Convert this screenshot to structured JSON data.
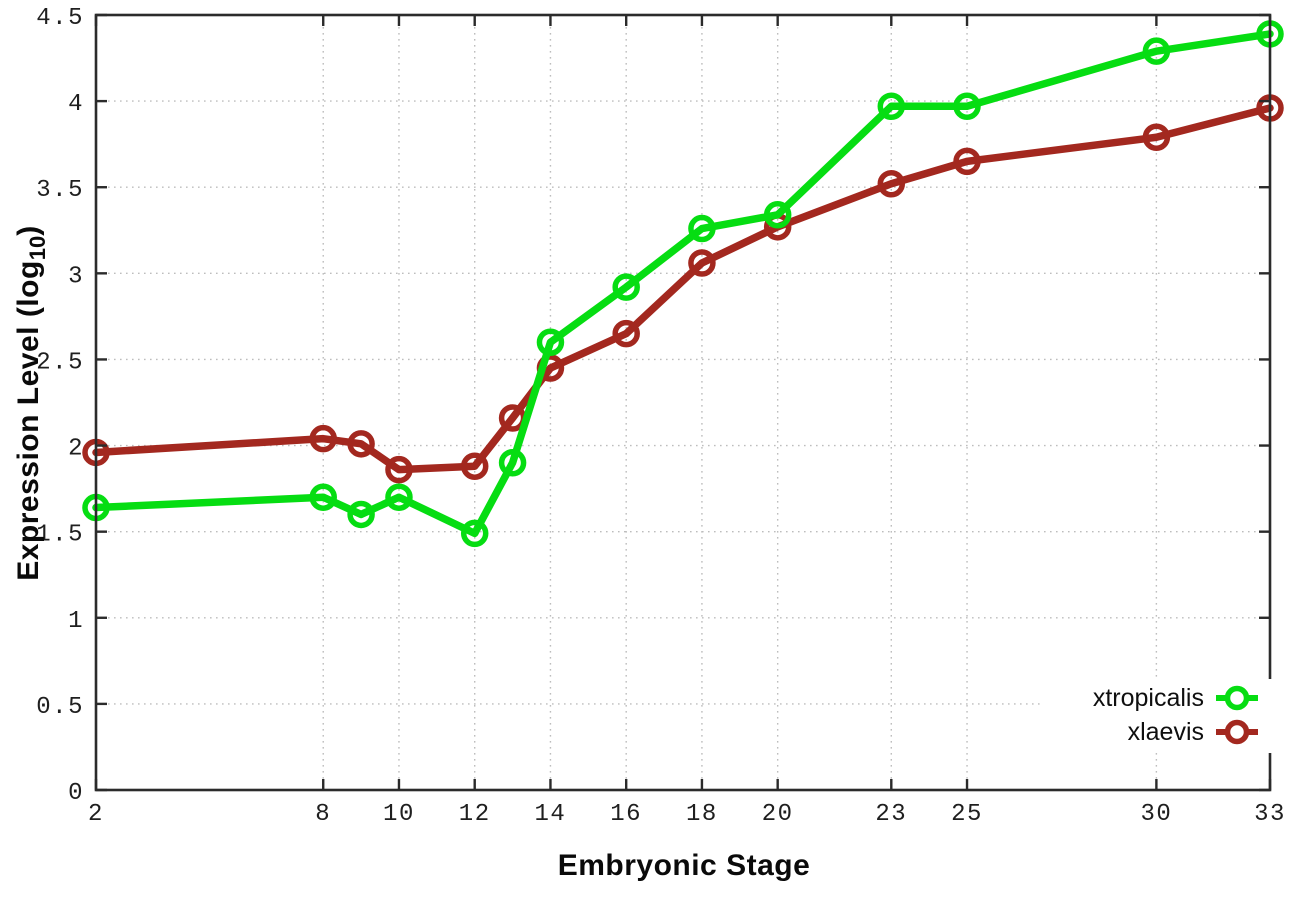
{
  "chart_data": {
    "type": "line",
    "title": "",
    "xlabel": "Embryonic Stage",
    "ylabel": "Expression Level (log10)",
    "ylabel_parts": {
      "main": "Expression Level (log",
      "sub": "10",
      "suffix": ")"
    },
    "xlim": [
      2,
      33
    ],
    "ylim": [
      0,
      4.5
    ],
    "x_ticks": [
      2,
      8,
      10,
      12,
      14,
      16,
      18,
      20,
      23,
      25,
      30,
      33
    ],
    "y_ticks": [
      0,
      0.5,
      1,
      1.5,
      2,
      2.5,
      3,
      3.5,
      4,
      4.5
    ],
    "grid": true,
    "grid_style": "dotted",
    "legend_position": "bottom-right",
    "x": [
      2,
      8,
      9,
      10,
      12,
      13,
      14,
      16,
      18,
      20,
      23,
      25,
      30,
      33
    ],
    "series": [
      {
        "name": "xtropicalis",
        "color": "#06dd12",
        "marker": "open-circle",
        "values": [
          1.64,
          1.7,
          1.6,
          1.7,
          1.49,
          1.9,
          2.6,
          2.92,
          3.26,
          3.34,
          3.97,
          3.97,
          4.29,
          4.39
        ]
      },
      {
        "name": "xlaevis",
        "color": "#a3281f",
        "marker": "open-circle",
        "values": [
          1.96,
          2.04,
          2.01,
          1.86,
          1.88,
          2.16,
          2.45,
          2.65,
          3.06,
          3.27,
          3.52,
          3.65,
          3.79,
          3.96
        ]
      }
    ],
    "colors": {
      "border": "#2b2b2b",
      "grid": "#bdbdbd",
      "tick_label": "#1f1f1f",
      "background": "#ffffff"
    }
  }
}
